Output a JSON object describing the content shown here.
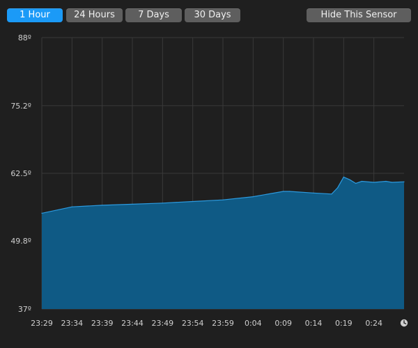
{
  "toolbar": {
    "ranges": [
      {
        "label": "1 Hour",
        "active": true
      },
      {
        "label": "24 Hours",
        "active": false
      },
      {
        "label": "7 Days",
        "active": false
      },
      {
        "label": "30 Days",
        "active": false
      }
    ],
    "hide_label": "Hide This Sensor"
  },
  "icons": {
    "clock": "clock-icon"
  },
  "colors": {
    "background": "#1f1f1f",
    "grid": "#3a3a3a",
    "area_fill": "#0f5a85",
    "area_line": "#2c9be0",
    "active_button": "#1b9af7",
    "button": "#5e5e5e"
  },
  "chart_data": {
    "type": "area",
    "title": "",
    "xlabel": "",
    "ylabel": "",
    "ylim": [
      37,
      88
    ],
    "y_ticks": [
      "37º",
      "49.8º",
      "62.5º",
      "75.2º",
      "88º"
    ],
    "y_tick_values": [
      37,
      49.8,
      62.5,
      75.2,
      88
    ],
    "x_ticks": [
      "23:29",
      "23:34",
      "23:39",
      "23:44",
      "23:49",
      "23:54",
      "23:59",
      "0:04",
      "0:09",
      "0:14",
      "0:19",
      "0:24"
    ],
    "x": [
      "23:29",
      "23:34",
      "23:39",
      "23:44",
      "23:49",
      "23:54",
      "23:59",
      "0:04",
      "0:09",
      "0:10",
      "0:14",
      "0:17",
      "0:18",
      "0:19",
      "0:20",
      "0:21",
      "0:22",
      "0:24",
      "0:26",
      "0:27",
      "0:29"
    ],
    "values": [
      55.0,
      56.2,
      56.5,
      56.7,
      56.9,
      57.2,
      57.5,
      58.1,
      59.1,
      59.1,
      58.8,
      58.6,
      59.8,
      61.8,
      61.3,
      60.6,
      61.0,
      60.8,
      61.0,
      60.8,
      60.9
    ],
    "grid": true,
    "legend": "none"
  }
}
